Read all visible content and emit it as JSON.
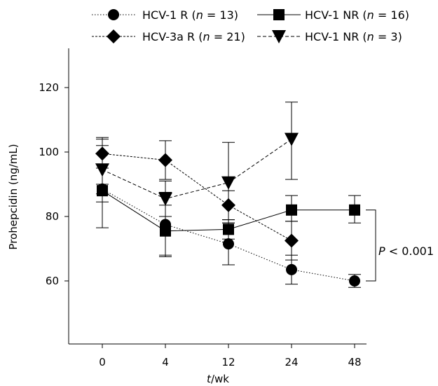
{
  "chart_data": {
    "type": "line",
    "x_label_italic": "t",
    "x_label_rest": "/wk",
    "ylabel": "Prohepcidin (ng/mL)",
    "categories": [
      "0",
      "4",
      "12",
      "24",
      "48"
    ],
    "y_ticks": [
      60,
      80,
      100,
      120
    ],
    "ylim": [
      50,
      120
    ],
    "grid": false,
    "legend_placement": "top",
    "series": [
      {
        "name_prefix": "HCV-1 R (",
        "name_n": "n",
        "name_suffix": " = 13)",
        "marker": "circle",
        "line_style": "dotted",
        "values": [
          88.5,
          77.5,
          71.5,
          63.5,
          60.0
        ],
        "err_hi": [
          1.5,
          6.0,
          6.5,
          4.5,
          2.0
        ],
        "err_lo": [
          1.5,
          10.0,
          6.5,
          4.5,
          2.0
        ]
      },
      {
        "name_prefix": "HCV-1 NR (",
        "name_n": "n",
        "name_suffix": " = 16)",
        "marker": "square",
        "line_style": "solid",
        "values": [
          88.0,
          75.5,
          76.0,
          82.0,
          82.0
        ],
        "err_hi": [
          14.0,
          12.0,
          3.0,
          4.5,
          4.5
        ],
        "err_lo": [
          11.5,
          7.5,
          3.0,
          3.5,
          4.0
        ]
      },
      {
        "name_prefix": "HCV-3a R (",
        "name_n": "n",
        "name_suffix": " = 21)",
        "marker": "diamond",
        "line_style": "dashed-short",
        "values": [
          99.5,
          97.5,
          83.5,
          72.5,
          null
        ],
        "err_hi": [
          4.5,
          6.0,
          4.5,
          6.0,
          null
        ],
        "err_lo": [
          4.5,
          6.0,
          4.5,
          6.0,
          null
        ]
      },
      {
        "name_prefix": "HCV-1 NR (",
        "name_n": "n",
        "name_suffix": " = 3)",
        "marker": "triangle-down",
        "line_style": "dashed",
        "values": [
          94.5,
          85.5,
          90.5,
          104.0,
          null
        ],
        "err_hi": [
          10.0,
          5.5,
          12.5,
          11.5,
          null
        ],
        "err_lo": [
          10.0,
          5.5,
          12.5,
          12.5,
          null
        ]
      }
    ],
    "annotation": {
      "p_label": "P",
      "p_rest": " < 0.001",
      "bracket_values": [
        82.0,
        60.0
      ]
    }
  }
}
